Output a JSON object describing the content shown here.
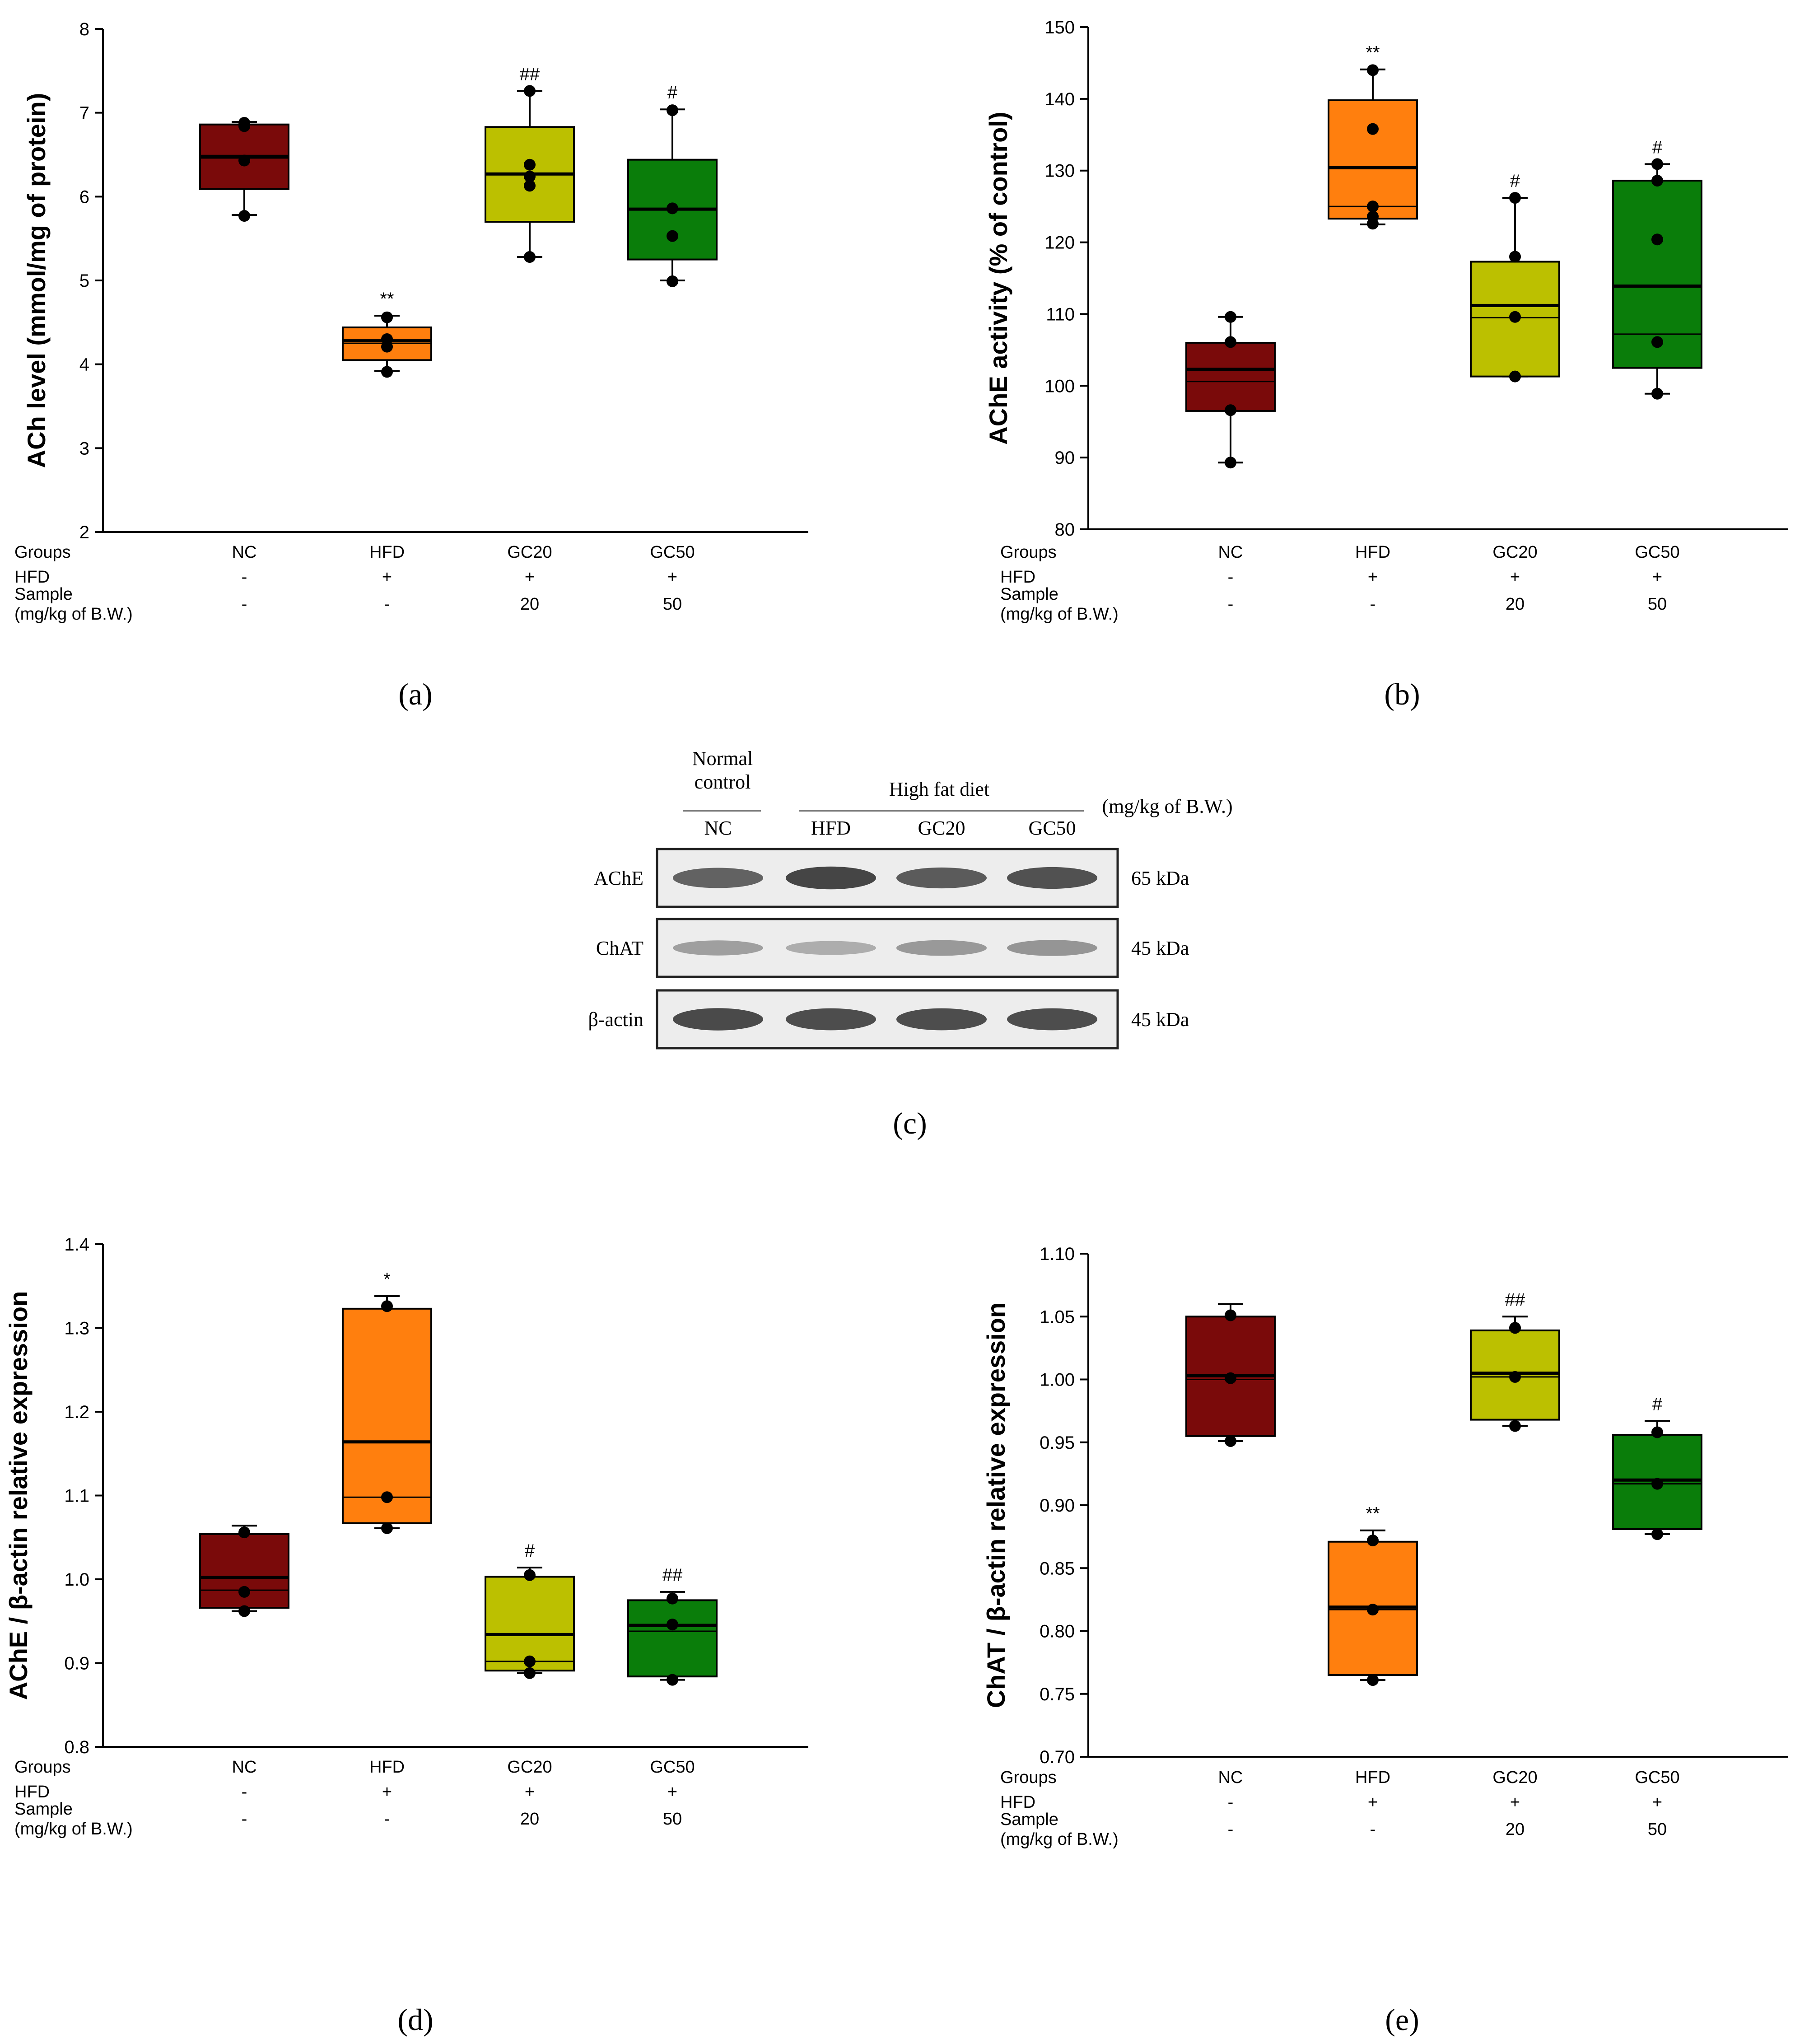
{
  "chart_data": [
    {
      "panel": "(a)",
      "type": "box",
      "title": "",
      "ylabel": "ACh level (mmol/mg of protein)",
      "ylim": [
        2,
        8
      ],
      "yticks": [
        "2",
        "3",
        "4",
        "5",
        "6",
        "7",
        "8"
      ],
      "table_rows": [
        {
          "label": "Groups",
          "values": [
            "NC",
            "HFD",
            "GC20",
            "GC50"
          ]
        },
        {
          "label": "HFD",
          "values": [
            "-",
            "+",
            "+",
            "+"
          ]
        },
        {
          "label": "Sample\n(mg/kg of B.W.)",
          "values": [
            "-",
            "-",
            "20",
            "50"
          ]
        }
      ],
      "groups": [
        {
          "name": "NC",
          "color": "#7a0a0a",
          "whisker": [
            5.78,
            6.89
          ],
          "box": [
            6.09,
            6.86
          ],
          "median": 6.46,
          "mean": 6.48,
          "points": [
            6.88,
            6.84,
            6.43,
            5.77
          ],
          "sig": ""
        },
        {
          "name": "HFD",
          "color": "#ff7f0e",
          "whisker": [
            3.92,
            4.58
          ],
          "box": [
            4.05,
            4.44
          ],
          "median": 4.25,
          "mean": 4.28,
          "points": [
            4.56,
            4.3,
            4.21,
            3.91
          ],
          "sig": "**"
        },
        {
          "name": "GC20",
          "color": "#bcc000",
          "whisker": [
            5.28,
            7.26
          ],
          "box": [
            5.7,
            6.83
          ],
          "median": 6.27,
          "mean": 6.27,
          "points": [
            7.26,
            6.38,
            6.24,
            6.13,
            5.28
          ],
          "sig": "##"
        },
        {
          "name": "GC50",
          "color": "#0a7d0a",
          "whisker": [
            5.0,
            7.04
          ],
          "box": [
            5.25,
            6.44
          ],
          "median": 5.85,
          "mean": 5.85,
          "points": [
            7.03,
            5.86,
            5.53,
            4.99
          ],
          "sig": "#"
        }
      ]
    },
    {
      "panel": "(b)",
      "type": "box",
      "title": "",
      "ylabel": "AChE activity (% of control)",
      "ylim": [
        80,
        150
      ],
      "yticks": [
        "80",
        "90",
        "100",
        "110",
        "120",
        "130",
        "140",
        "150"
      ],
      "table_rows": [
        {
          "label": "Groups",
          "values": [
            "NC",
            "HFD",
            "GC20",
            "GC50"
          ]
        },
        {
          "label": "HFD",
          "values": [
            "-",
            "+",
            "+",
            "+"
          ]
        },
        {
          "label": "Sample\n(mg/kg of B.W.)",
          "values": [
            "-",
            "-",
            "20",
            "50"
          ]
        }
      ],
      "groups": [
        {
          "name": "NC",
          "color": "#7a0a0a",
          "whisker": [
            89.3,
            109.6
          ],
          "box": [
            96.5,
            106.0
          ],
          "median": 100.6,
          "mean": 102.3,
          "points": [
            109.6,
            106.1,
            96.6,
            89.3
          ],
          "sig": ""
        },
        {
          "name": "HFD",
          "color": "#ff7f0e",
          "whisker": [
            122.5,
            144.1
          ],
          "box": [
            123.3,
            139.8
          ],
          "median": 125.0,
          "mean": 130.4,
          "points": [
            144.0,
            135.8,
            125.0,
            123.6,
            122.6
          ],
          "sig": "**"
        },
        {
          "name": "GC20",
          "color": "#bcc000",
          "whisker": [
            101.3,
            126.2
          ],
          "box": [
            101.3,
            117.3
          ],
          "median": 109.5,
          "mean": 111.2,
          "points": [
            126.2,
            118.0,
            109.6,
            101.3
          ],
          "sig": "#"
        },
        {
          "name": "GC50",
          "color": "#0a7d0a",
          "whisker": [
            98.9,
            130.9
          ],
          "box": [
            102.5,
            128.6
          ],
          "median": 107.2,
          "mean": 113.9,
          "points": [
            130.9,
            128.6,
            120.4,
            106.1,
            98.9
          ],
          "sig": "#"
        }
      ]
    },
    {
      "panel": "(d)",
      "type": "box",
      "title": "",
      "ylabel": "AChE / β-actin relative expression",
      "ylim": [
        0.8,
        1.4
      ],
      "yticks": [
        "0.8",
        "0.9",
        "1.0",
        "1.1",
        "1.2",
        "1.3",
        "1.4"
      ],
      "table_rows": [
        {
          "label": "Groups",
          "values": [
            "NC",
            "HFD",
            "GC20",
            "GC50"
          ]
        },
        {
          "label": "HFD",
          "values": [
            "-",
            "+",
            "+",
            "+"
          ]
        },
        {
          "label": "Sample\n(mg/kg of B.W.)",
          "values": [
            "-",
            "-",
            "20",
            "50"
          ]
        }
      ],
      "groups": [
        {
          "name": "NC",
          "color": "#7a0a0a",
          "whisker": [
            0.962,
            1.064
          ],
          "box": [
            0.966,
            1.054
          ],
          "median": 0.987,
          "mean": 1.002,
          "points": [
            1.056,
            0.985,
            0.962
          ],
          "sig": ""
        },
        {
          "name": "HFD",
          "color": "#ff7f0e",
          "whisker": [
            1.061,
            1.338
          ],
          "box": [
            1.067,
            1.323
          ],
          "median": 1.098,
          "mean": 1.164,
          "points": [
            1.326,
            1.098,
            1.061
          ],
          "sig": "*"
        },
        {
          "name": "GC20",
          "color": "#bcc000",
          "whisker": [
            0.888,
            1.014
          ],
          "box": [
            0.891,
            1.003
          ],
          "median": 0.902,
          "mean": 0.934,
          "points": [
            1.005,
            0.902,
            0.888
          ],
          "sig": "#"
        },
        {
          "name": "GC50",
          "color": "#0a7d0a",
          "whisker": [
            0.88,
            0.985
          ],
          "box": [
            0.884,
            0.975
          ],
          "median": 0.938,
          "mean": 0.945,
          "points": [
            0.977,
            0.946,
            0.88
          ],
          "sig": "##"
        }
      ]
    },
    {
      "panel": "(e)",
      "type": "box",
      "title": "",
      "ylabel": "ChAT / β-actin relative expression",
      "ylim": [
        0.7,
        1.1
      ],
      "yticks": [
        "0.70",
        "0.75",
        "0.80",
        "0.85",
        "0.90",
        "0.95",
        "1.00",
        "1.05",
        "1.10"
      ],
      "table_rows": [
        {
          "label": "Groups",
          "values": [
            "NC",
            "HFD",
            "GC20",
            "GC50"
          ]
        },
        {
          "label": "HFD",
          "values": [
            "-",
            "+",
            "+",
            "+"
          ]
        },
        {
          "label": "Sample\n(mg/kg of B.W.)",
          "values": [
            "-",
            "-",
            "20",
            "50"
          ]
        }
      ],
      "groups": [
        {
          "name": "NC",
          "color": "#7a0a0a",
          "whisker": [
            0.951,
            1.06
          ],
          "box": [
            0.955,
            1.05
          ],
          "median": 1.0,
          "mean": 1.003,
          "points": [
            1.051,
            1.001,
            0.951
          ],
          "sig": ""
        },
        {
          "name": "HFD",
          "color": "#ff7f0e",
          "whisker": [
            0.761,
            0.88
          ],
          "box": [
            0.765,
            0.871
          ],
          "median": 0.817,
          "mean": 0.819,
          "points": [
            0.872,
            0.817,
            0.761
          ],
          "sig": "**"
        },
        {
          "name": "GC20",
          "color": "#bcc000",
          "whisker": [
            0.963,
            1.05
          ],
          "box": [
            0.968,
            1.039
          ],
          "median": 1.002,
          "mean": 1.005,
          "points": [
            1.041,
            1.002,
            0.963
          ],
          "sig": "##"
        },
        {
          "name": "GC50",
          "color": "#0a7d0a",
          "whisker": [
            0.877,
            0.967
          ],
          "box": [
            0.881,
            0.956
          ],
          "median": 0.917,
          "mean": 0.92,
          "points": [
            0.958,
            0.917,
            0.877
          ],
          "sig": "#"
        }
      ]
    }
  ],
  "western_blot": {
    "panel": "(c)",
    "normal_control_label": "Normal\ncontrol",
    "high_fat_label": "High fat diet",
    "unit_label": "(mg/kg of B.W.)",
    "lanes": [
      "NC",
      "HFD",
      "GC20",
      "GC50"
    ],
    "rows": [
      {
        "protein": "AChE",
        "size": "65 kDa",
        "intensity": [
          0.78,
          0.95,
          0.82,
          0.88
        ]
      },
      {
        "protein": "ChAT",
        "size": "45 kDa",
        "intensity": [
          0.42,
          0.34,
          0.46,
          0.48
        ]
      },
      {
        "protein": "β-actin",
        "size": "45 kDa",
        "intensity": [
          0.92,
          0.9,
          0.9,
          0.9
        ]
      }
    ]
  },
  "panel_labels": [
    "(a)",
    "(b)",
    "(c)",
    "(d)",
    "(e)"
  ]
}
